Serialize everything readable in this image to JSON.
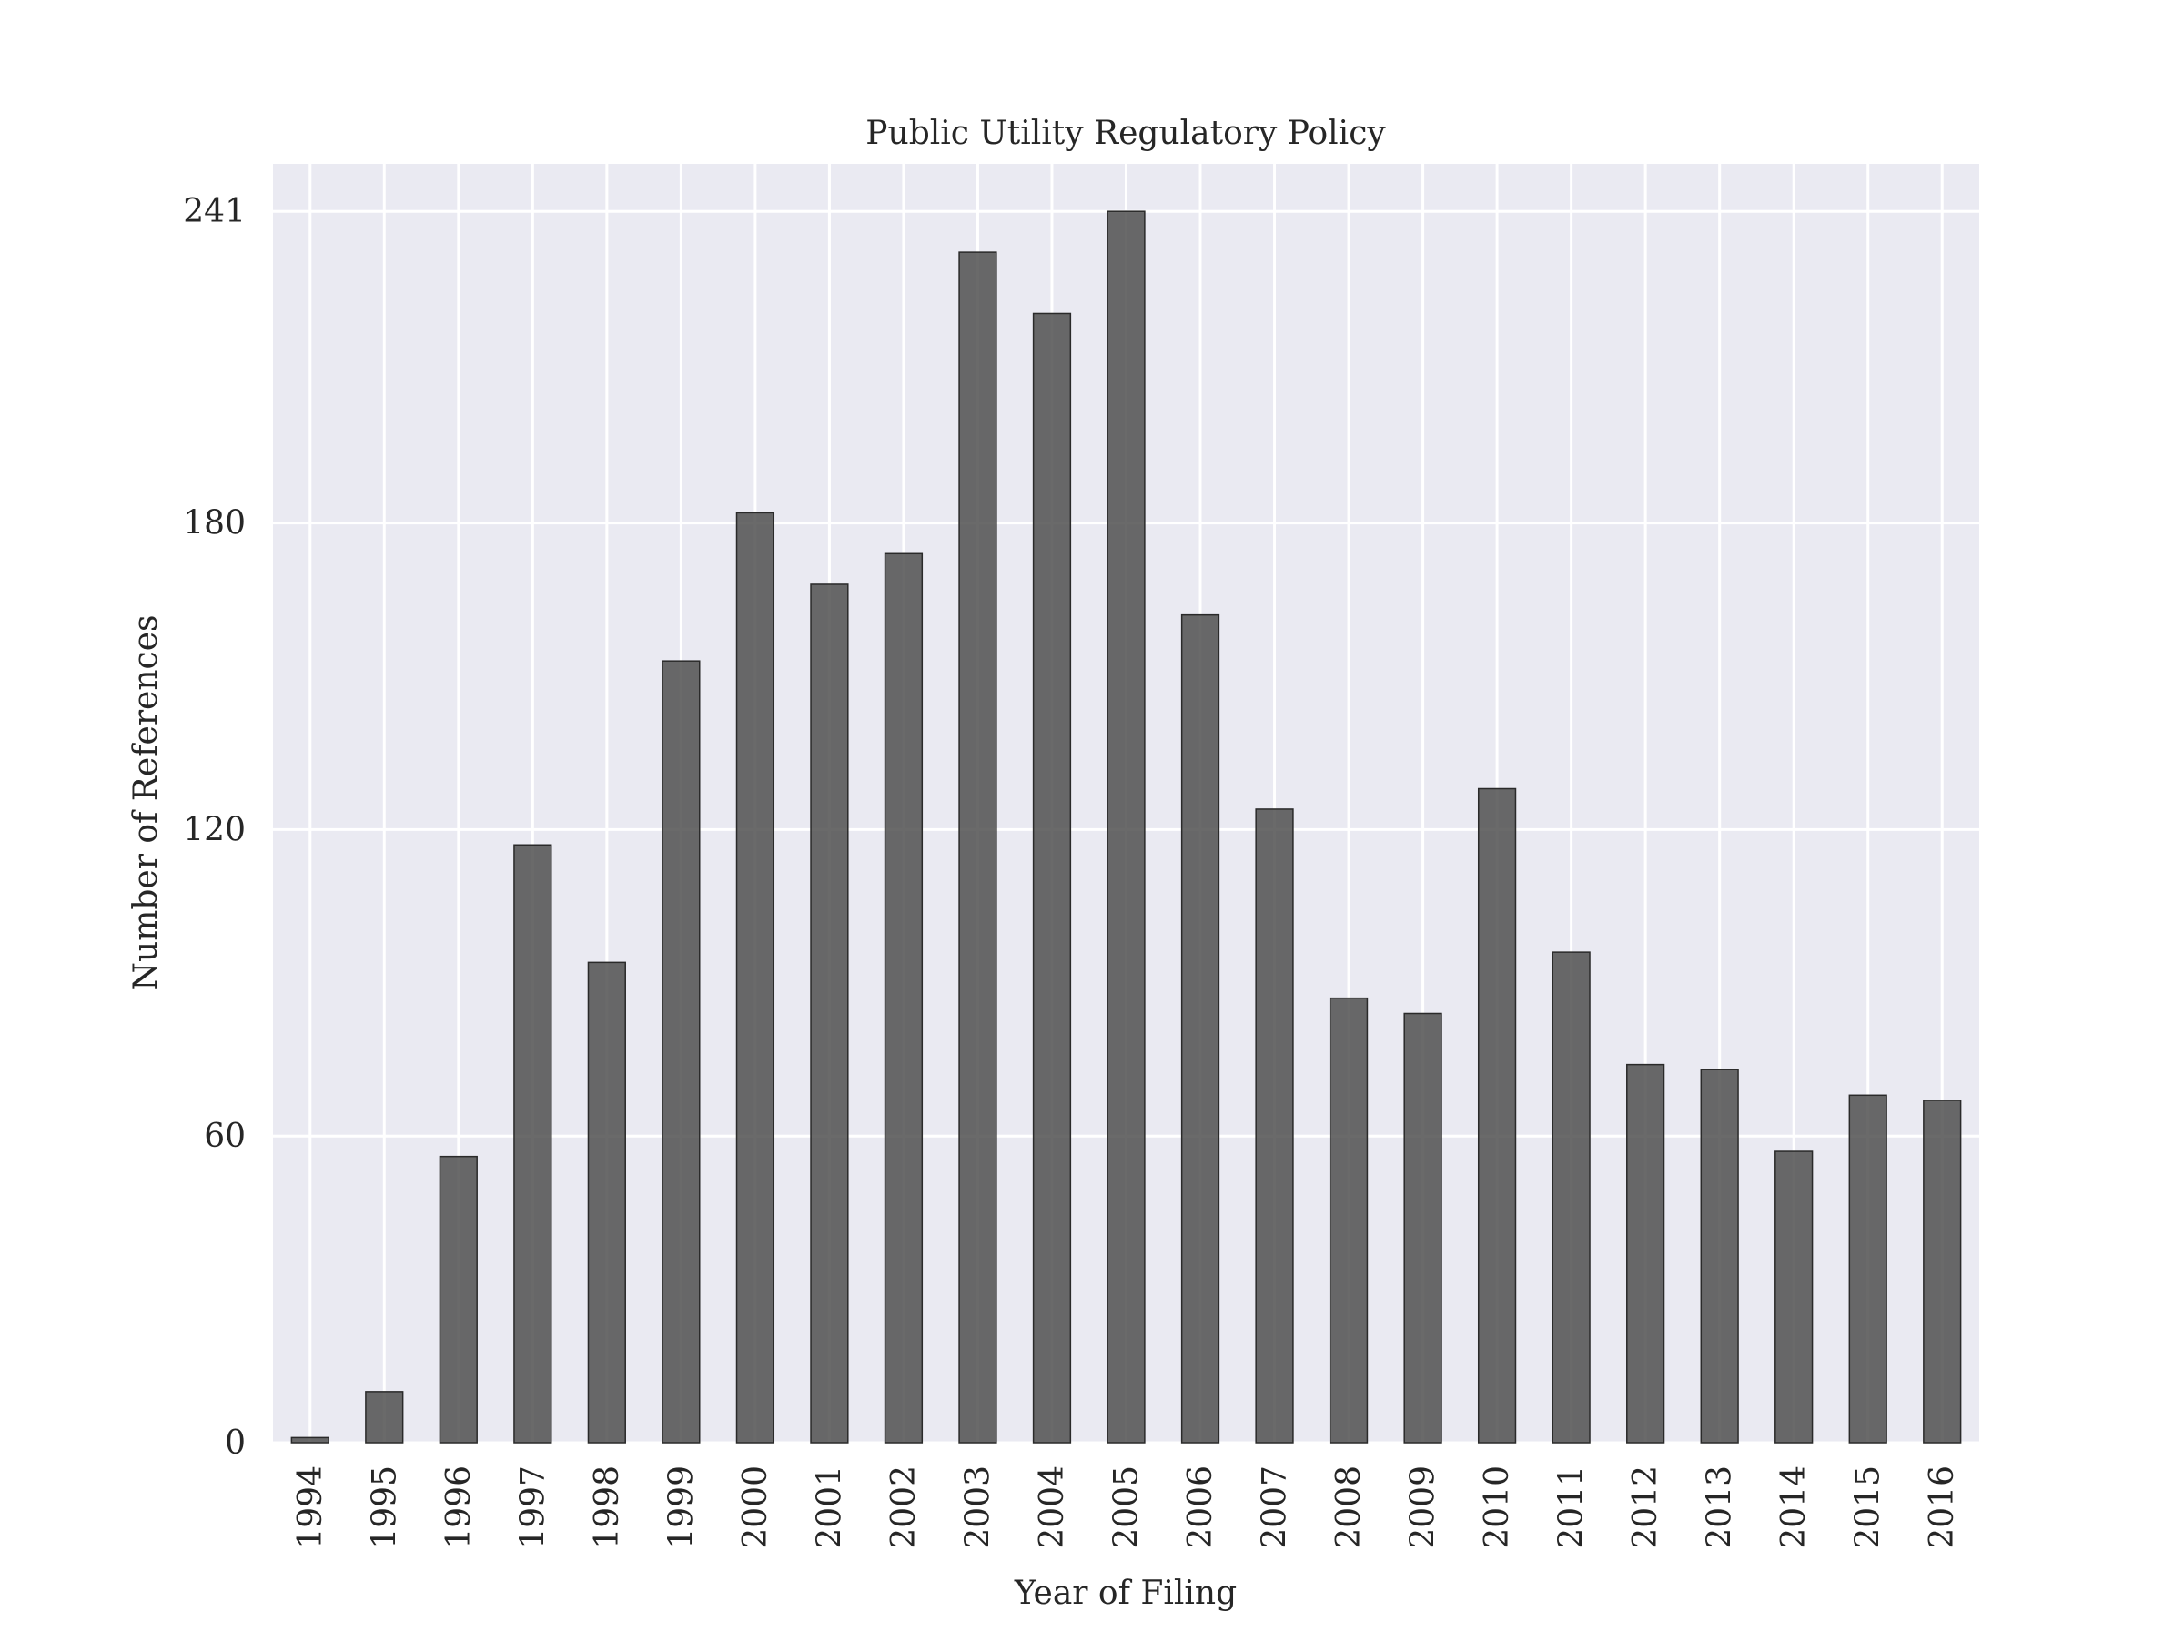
{
  "chart_data": {
    "type": "bar",
    "title": "Public Utility Regulatory Policy",
    "xlabel": "Year of Filing",
    "ylabel": "Number of References",
    "categories": [
      "1994",
      "1995",
      "1996",
      "1997",
      "1998",
      "1999",
      "2000",
      "2001",
      "2002",
      "2003",
      "2004",
      "2005",
      "2006",
      "2007",
      "2008",
      "2009",
      "2010",
      "2011",
      "2012",
      "2013",
      "2014",
      "2015",
      "2016"
    ],
    "values": [
      1,
      10,
      56,
      117,
      94,
      153,
      182,
      168,
      174,
      233,
      221,
      241,
      162,
      124,
      87,
      84,
      128,
      96,
      74,
      73,
      57,
      68,
      67
    ],
    "yticks": [
      0,
      60,
      120,
      180,
      241
    ],
    "ylim": [
      0,
      250.3
    ],
    "grid": true,
    "colors": {
      "bar_fill": "#505050",
      "bar_edge": "#2a2a2a",
      "plot_bg": "#eaeaf2",
      "grid": "#ffffff"
    }
  }
}
